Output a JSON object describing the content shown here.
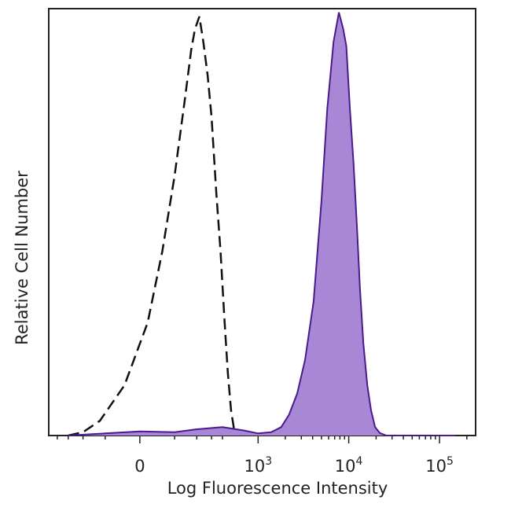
{
  "chart_data": {
    "type": "area",
    "xlabel": "Log Fluorescence Intensity",
    "ylabel": "Relative Cell Number",
    "x_scale": "biexponential",
    "ylim": [
      0,
      100
    ],
    "grid": false,
    "legend": "none",
    "x_ticks": [
      {
        "value": 0,
        "base": "0",
        "exp": ""
      },
      {
        "value": 1000,
        "base": "10",
        "exp": "3"
      },
      {
        "value": 10000,
        "base": "10",
        "exp": "4"
      },
      {
        "value": 100000,
        "base": "10",
        "exp": "5"
      }
    ],
    "series": [
      {
        "style": "dashed-outline",
        "color": "#111111",
        "points": [
          [
            -300,
            0.0
          ],
          [
            -200,
            0.8
          ],
          [
            -120,
            3.5
          ],
          [
            -40,
            12
          ],
          [
            20,
            27
          ],
          [
            60,
            44
          ],
          [
            100,
            62
          ],
          [
            140,
            80
          ],
          [
            170,
            92
          ],
          [
            190,
            97
          ],
          [
            215,
            100
          ],
          [
            240,
            94
          ],
          [
            270,
            86
          ],
          [
            300,
            76
          ],
          [
            340,
            58
          ],
          [
            380,
            44
          ],
          [
            420,
            28
          ],
          [
            460,
            15
          ],
          [
            500,
            6
          ],
          [
            540,
            1.5
          ],
          [
            580,
            0.5
          ],
          [
            640,
            0.0
          ]
        ]
      },
      {
        "style": "filled",
        "color": "#4b1a8c",
        "fill": "#a887d6",
        "points": [
          [
            -300,
            0.0
          ],
          [
            -100,
            0.5
          ],
          [
            0,
            1
          ],
          [
            100,
            0.8
          ],
          [
            200,
            1.5
          ],
          [
            400,
            2
          ],
          [
            700,
            1.2
          ],
          [
            1000,
            0.5
          ],
          [
            1400,
            0.8
          ],
          [
            1800,
            2
          ],
          [
            2200,
            5
          ],
          [
            2700,
            10
          ],
          [
            3300,
            18
          ],
          [
            4100,
            32
          ],
          [
            5000,
            56
          ],
          [
            5800,
            78
          ],
          [
            6800,
            94
          ],
          [
            7800,
            101
          ],
          [
            8700,
            97
          ],
          [
            9400,
            93
          ],
          [
            10300,
            78
          ],
          [
            11300,
            65
          ],
          [
            12300,
            50
          ],
          [
            13300,
            35
          ],
          [
            14500,
            22
          ],
          [
            16000,
            12
          ],
          [
            17600,
            6
          ],
          [
            19500,
            2
          ],
          [
            22000,
            0.6
          ],
          [
            26000,
            0.0
          ],
          [
            60000,
            0.0
          ],
          [
            150000,
            0.0
          ]
        ]
      }
    ]
  }
}
